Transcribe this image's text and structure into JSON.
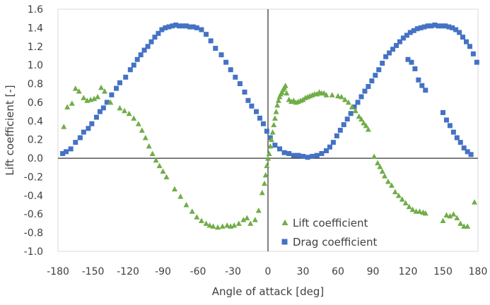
{
  "chart_data": {
    "type": "scatter",
    "xlabel": "Angle of attack [deg]",
    "ylabel": "Lift coefficient [-]",
    "xlim": [
      -180,
      180
    ],
    "ylim": [
      -1.0,
      1.6
    ],
    "xticks": [
      -180,
      -150,
      -120,
      -90,
      -60,
      -30,
      0,
      30,
      60,
      90,
      120,
      150,
      180
    ],
    "yticks": [
      -1.0,
      -0.8,
      -0.6,
      -0.4,
      -0.2,
      0.0,
      0.2,
      0.4,
      0.6,
      0.8,
      1.0,
      1.2,
      1.4,
      1.6
    ],
    "xtick_labels": [
      "-180",
      "-150",
      "-120",
      "-90",
      "-60",
      "-30",
      "0",
      "30",
      "60",
      "90",
      "120",
      "150",
      "180"
    ],
    "ytick_labels": [
      "-1.0",
      "-0.8",
      "-0.6",
      "-0.4",
      "-0.2",
      "0.0",
      "0.2",
      "0.4",
      "0.6",
      "0.8",
      "1.0",
      "1.2",
      "1.4",
      "1.6"
    ],
    "grid": false,
    "legend_position": "bottom-right",
    "series": [
      {
        "name": "Lift coefficient",
        "marker": "triangle",
        "color": "#70ad47",
        "points": [
          [
            -175,
            0.34
          ],
          [
            -172,
            0.55
          ],
          [
            -168,
            0.59
          ],
          [
            -165,
            0.75
          ],
          [
            -162,
            0.72
          ],
          [
            -158,
            0.65
          ],
          [
            -155,
            0.62
          ],
          [
            -152,
            0.63
          ],
          [
            -149,
            0.64
          ],
          [
            -146,
            0.66
          ],
          [
            -143,
            0.76
          ],
          [
            -140,
            0.72
          ],
          [
            -135,
            0.6
          ],
          [
            -127,
            0.54
          ],
          [
            -123,
            0.51
          ],
          [
            -119,
            0.48
          ],
          [
            -115,
            0.43
          ],
          [
            -111,
            0.37
          ],
          [
            -108,
            0.3
          ],
          [
            -105,
            0.22
          ],
          [
            -102,
            0.13
          ],
          [
            -99,
            0.05
          ],
          [
            -96,
            -0.02
          ],
          [
            -93,
            -0.08
          ],
          [
            -90,
            -0.14
          ],
          [
            -87,
            -0.2
          ],
          [
            -80,
            -0.33
          ],
          [
            -75,
            -0.41
          ],
          [
            -70,
            -0.5
          ],
          [
            -65,
            -0.57
          ],
          [
            -61,
            -0.63
          ],
          [
            -57,
            -0.67
          ],
          [
            -53,
            -0.7
          ],
          [
            -50,
            -0.72
          ],
          [
            -47,
            -0.73
          ],
          [
            -43,
            -0.74
          ],
          [
            -39,
            -0.73
          ],
          [
            -35,
            -0.72
          ],
          [
            -32,
            -0.73
          ],
          [
            -29,
            -0.72
          ],
          [
            -25,
            -0.7
          ],
          [
            -21,
            -0.66
          ],
          [
            -18,
            -0.64
          ],
          [
            -15,
            -0.7
          ],
          [
            -11,
            -0.66
          ],
          [
            -8,
            -0.56
          ],
          [
            -5,
            -0.37
          ],
          [
            -3,
            -0.27
          ],
          [
            -2,
            -0.18
          ],
          [
            -1,
            -0.08
          ],
          [
            0,
            0.0
          ],
          [
            1,
            0.05
          ],
          [
            2,
            0.13
          ],
          [
            3,
            0.2
          ],
          [
            4,
            0.28
          ],
          [
            5,
            0.36
          ],
          [
            6,
            0.43
          ],
          [
            7,
            0.5
          ],
          [
            8,
            0.57
          ],
          [
            9,
            0.62
          ],
          [
            10,
            0.66
          ],
          [
            11,
            0.69
          ],
          [
            12,
            0.71
          ],
          [
            13,
            0.74
          ],
          [
            14,
            0.76
          ],
          [
            15,
            0.78
          ],
          [
            16,
            0.7
          ],
          [
            18,
            0.63
          ],
          [
            20,
            0.61
          ],
          [
            22,
            0.62
          ],
          [
            24,
            0.6
          ],
          [
            26,
            0.61
          ],
          [
            28,
            0.62
          ],
          [
            30,
            0.63
          ],
          [
            32,
            0.65
          ],
          [
            34,
            0.66
          ],
          [
            36,
            0.67
          ],
          [
            38,
            0.68
          ],
          [
            40,
            0.69
          ],
          [
            42,
            0.69
          ],
          [
            44,
            0.71
          ],
          [
            46,
            0.7
          ],
          [
            48,
            0.7
          ],
          [
            50,
            0.68
          ],
          [
            55,
            0.68
          ],
          [
            60,
            0.67
          ],
          [
            63,
            0.66
          ],
          [
            66,
            0.63
          ],
          [
            69,
            0.6
          ],
          [
            72,
            0.55
          ],
          [
            75,
            0.51
          ],
          [
            78,
            0.45
          ],
          [
            80,
            0.42
          ],
          [
            82,
            0.38
          ],
          [
            84,
            0.35
          ],
          [
            86,
            0.31
          ],
          [
            91,
            0.02
          ],
          [
            94,
            -0.05
          ],
          [
            96,
            -0.09
          ],
          [
            98,
            -0.14
          ],
          [
            100,
            -0.19
          ],
          [
            103,
            -0.25
          ],
          [
            106,
            -0.29
          ],
          [
            109,
            -0.36
          ],
          [
            112,
            -0.4
          ],
          [
            115,
            -0.44
          ],
          [
            118,
            -0.48
          ],
          [
            121,
            -0.52
          ],
          [
            124,
            -0.55
          ],
          [
            127,
            -0.57
          ],
          [
            130,
            -0.57
          ],
          [
            133,
            -0.58
          ],
          [
            135,
            -0.59
          ],
          [
            150,
            -0.67
          ],
          [
            153,
            -0.61
          ],
          [
            156,
            -0.62
          ],
          [
            159,
            -0.6
          ],
          [
            162,
            -0.64
          ],
          [
            165,
            -0.7
          ],
          [
            168,
            -0.73
          ],
          [
            171,
            -0.73
          ],
          [
            177,
            -0.47
          ]
        ]
      },
      {
        "name": "Drag coefficient",
        "marker": "square",
        "color": "#4472c4",
        "points": [
          [
            -176,
            0.05
          ],
          [
            -173,
            0.07
          ],
          [
            -169,
            0.1
          ],
          [
            -165,
            0.17
          ],
          [
            -161,
            0.22
          ],
          [
            -158,
            0.28
          ],
          [
            -154,
            0.32
          ],
          [
            -151,
            0.37
          ],
          [
            -147,
            0.44
          ],
          [
            -144,
            0.5
          ],
          [
            -141,
            0.54
          ],
          [
            -138,
            0.6
          ],
          [
            -134,
            0.68
          ],
          [
            -130,
            0.75
          ],
          [
            -127,
            0.81
          ],
          [
            -122,
            0.87
          ],
          [
            -118,
            0.95
          ],
          [
            -115,
            1.0
          ],
          [
            -112,
            1.06
          ],
          [
            -109,
            1.11
          ],
          [
            -106,
            1.16
          ],
          [
            -103,
            1.2
          ],
          [
            -100,
            1.25
          ],
          [
            -97,
            1.3
          ],
          [
            -94,
            1.34
          ],
          [
            -91,
            1.38
          ],
          [
            -88,
            1.4
          ],
          [
            -85,
            1.41
          ],
          [
            -82,
            1.42
          ],
          [
            -79,
            1.43
          ],
          [
            -76,
            1.42
          ],
          [
            -73,
            1.42
          ],
          [
            -70,
            1.42
          ],
          [
            -67,
            1.41
          ],
          [
            -64,
            1.41
          ],
          [
            -61,
            1.4
          ],
          [
            -57,
            1.38
          ],
          [
            -53,
            1.33
          ],
          [
            -49,
            1.26
          ],
          [
            -45,
            1.18
          ],
          [
            -40,
            1.11
          ],
          [
            -36,
            1.03
          ],
          [
            -32,
            0.95
          ],
          [
            -28,
            0.87
          ],
          [
            -24,
            0.8
          ],
          [
            -20,
            0.71
          ],
          [
            -17,
            0.62
          ],
          [
            -14,
            0.56
          ],
          [
            -10,
            0.5
          ],
          [
            -7,
            0.43
          ],
          [
            -4,
            0.37
          ],
          [
            -1,
            0.29
          ],
          [
            2,
            0.22
          ],
          [
            6,
            0.14
          ],
          [
            10,
            0.1
          ],
          [
            14,
            0.06
          ],
          [
            18,
            0.05
          ],
          [
            22,
            0.03
          ],
          [
            26,
            0.03
          ],
          [
            30,
            0.02
          ],
          [
            34,
            0.01
          ],
          [
            38,
            0.02
          ],
          [
            42,
            0.03
          ],
          [
            46,
            0.05
          ],
          [
            50,
            0.08
          ],
          [
            53,
            0.12
          ],
          [
            56,
            0.17
          ],
          [
            59,
            0.24
          ],
          [
            62,
            0.3
          ],
          [
            65,
            0.36
          ],
          [
            68,
            0.42
          ],
          [
            71,
            0.48
          ],
          [
            74,
            0.55
          ],
          [
            77,
            0.6
          ],
          [
            80,
            0.66
          ],
          [
            83,
            0.72
          ],
          [
            86,
            0.77
          ],
          [
            89,
            0.83
          ],
          [
            92,
            0.89
          ],
          [
            95,
            0.95
          ],
          [
            98,
            1.02
          ],
          [
            101,
            1.09
          ],
          [
            104,
            1.13
          ],
          [
            107,
            1.17
          ],
          [
            110,
            1.21
          ],
          [
            113,
            1.25
          ],
          [
            116,
            1.29
          ],
          [
            119,
            1.32
          ],
          [
            122,
            1.35
          ],
          [
            125,
            1.37
          ],
          [
            128,
            1.39
          ],
          [
            131,
            1.4
          ],
          [
            134,
            1.41
          ],
          [
            137,
            1.42
          ],
          [
            140,
            1.42
          ],
          [
            143,
            1.43
          ],
          [
            146,
            1.42
          ],
          [
            149,
            1.42
          ],
          [
            152,
            1.42
          ],
          [
            155,
            1.41
          ],
          [
            158,
            1.4
          ],
          [
            161,
            1.38
          ],
          [
            164,
            1.35
          ],
          [
            167,
            1.3
          ],
          [
            170,
            1.25
          ],
          [
            173,
            1.2
          ],
          [
            176,
            1.12
          ],
          [
            179,
            1.03
          ],
          [
            120,
            1.06
          ],
          [
            123,
            1.03
          ],
          [
            126,
            0.96
          ],
          [
            129,
            0.84
          ],
          [
            132,
            0.78
          ],
          [
            135,
            0.73
          ],
          [
            150,
            0.49
          ],
          [
            153,
            0.41
          ],
          [
            156,
            0.35
          ],
          [
            159,
            0.28
          ],
          [
            162,
            0.22
          ],
          [
            165,
            0.17
          ],
          [
            168,
            0.11
          ],
          [
            171,
            0.07
          ],
          [
            174,
            0.04
          ]
        ]
      }
    ]
  }
}
